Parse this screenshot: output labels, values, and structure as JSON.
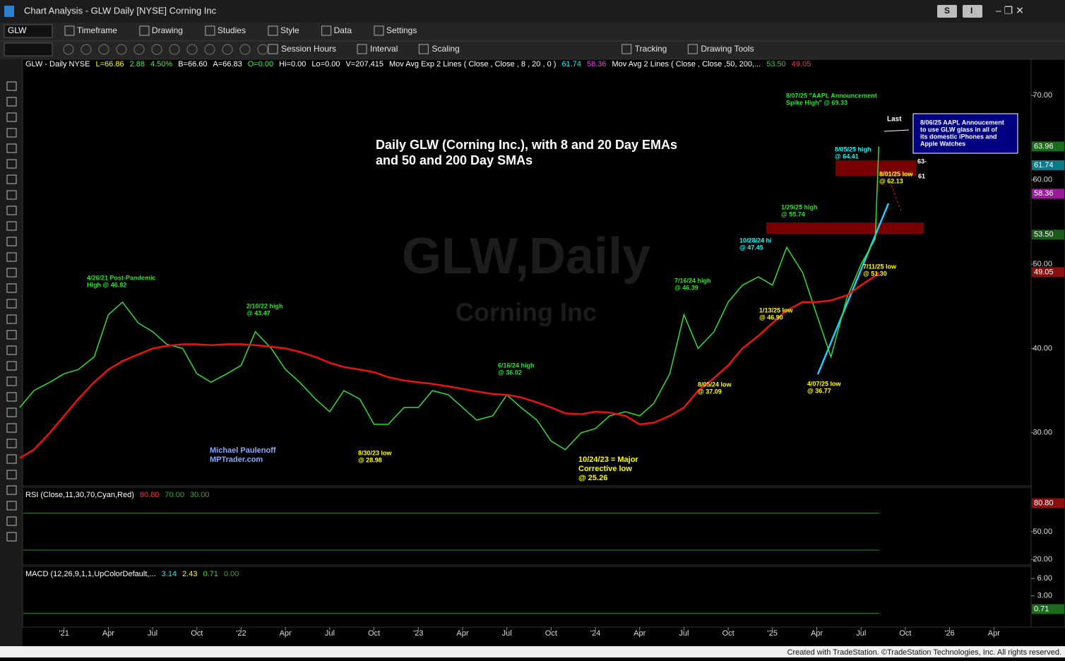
{
  "window": {
    "title": "Chart Analysis - GLW Daily [NYSE] Corning Inc",
    "buttons": [
      "S",
      "I"
    ]
  },
  "toolbar": {
    "symbol": "GLW",
    "row1": [
      "Timeframe",
      "Drawing",
      "Studies",
      "Style",
      "Data",
      "Settings"
    ],
    "row2": [
      "Session Hours",
      "Interval",
      "Scaling",
      "Tracking",
      "Drawing Tools"
    ]
  },
  "chart_data": {
    "type": "line",
    "header": [
      {
        "text": "GLW - Daily  NYSE",
        "color": "#ffffff"
      },
      {
        "text": "L=66.86",
        "color": "#ffff00"
      },
      {
        "text": "2.88",
        "color": "#33ff33"
      },
      {
        "text": "4.50%",
        "color": "#33ff33"
      },
      {
        "text": "B=66.60",
        "color": "#ffffff"
      },
      {
        "text": "A=66.83",
        "color": "#ffffff"
      },
      {
        "text": "O=0.00",
        "color": "#33ff33"
      },
      {
        "text": "Hi=0.00",
        "color": "#ffffff"
      },
      {
        "text": "Lo=0.00",
        "color": "#ffffff"
      },
      {
        "text": "V=207,415",
        "color": "#ffffff"
      },
      {
        "text": "Mov Avg Exp 2 Lines ( Close , Close , 8 , 20 , 0 )",
        "color": "#ffffff"
      },
      {
        "text": "61.74",
        "color": "#00ffff"
      },
      {
        "text": "58.36",
        "color": "#ff33ff"
      },
      {
        "text": "Mov Avg 2 Lines (     Close ,     Close ,50,  200,...",
        "color": "#ffffff"
      },
      {
        "text": "53.50",
        "color": "#33cc33"
      },
      {
        "text": "49.05",
        "color": "#ff3333"
      }
    ],
    "title": [
      "Daily GLW (Corning Inc.), with 8 and 20 Day EMAs",
      "and 50 and 200 Day SMAs"
    ],
    "watermark": [
      "GLW,Daily",
      "Corning Inc"
    ],
    "xlim": [
      2020.77,
      2026.46
    ],
    "xticks": [
      {
        "value": 2021,
        "label": "'21"
      },
      {
        "value": 2021.25,
        "label": "Apr"
      },
      {
        "value": 2021.5,
        "label": "Jul"
      },
      {
        "value": 2021.75,
        "label": "Oct"
      },
      {
        "value": 2022,
        "label": "'22"
      },
      {
        "value": 2022.25,
        "label": "Apr"
      },
      {
        "value": 2022.5,
        "label": "Jul"
      },
      {
        "value": 2022.75,
        "label": "Oct"
      },
      {
        "value": 2023,
        "label": "'23"
      },
      {
        "value": 2023.25,
        "label": "Apr"
      },
      {
        "value": 2023.5,
        "label": "Jul"
      },
      {
        "value": 2023.75,
        "label": "Oct"
      },
      {
        "value": 2024,
        "label": "'24"
      },
      {
        "value": 2024.25,
        "label": "Apr"
      },
      {
        "value": 2024.5,
        "label": "Jul"
      },
      {
        "value": 2024.75,
        "label": "Oct"
      },
      {
        "value": 2025,
        "label": "'25"
      },
      {
        "value": 2025.25,
        "label": "Apr"
      },
      {
        "value": 2025.5,
        "label": "Jul"
      },
      {
        "value": 2025.75,
        "label": "Oct"
      },
      {
        "value": 2026,
        "label": "'26"
      },
      {
        "value": 2026.25,
        "label": "Apr"
      }
    ],
    "ylim": [
      23.7,
      74.3
    ],
    "yticks": [
      {
        "value": 30,
        "label": "30.00"
      },
      {
        "value": 40,
        "label": "40.00"
      },
      {
        "value": 50,
        "label": "50.00"
      },
      {
        "value": 60,
        "label": "60.00"
      },
      {
        "value": 70,
        "label": "70.00"
      }
    ],
    "price_markers": [
      {
        "value": 63.96,
        "label": "63.96",
        "color": "#1a6b1a"
      },
      {
        "value": 61.74,
        "label": "61.74",
        "color": "#0a7a8a"
      },
      {
        "value": 58.36,
        "label": "58.36",
        "color": "#9a1a9a"
      },
      {
        "value": 53.5,
        "label": "53.50",
        "color": "#1a5a1a"
      },
      {
        "value": 49.05,
        "label": "49.05",
        "color": "#8a1010"
      }
    ],
    "x": [
      2020.75,
      2020.83,
      2020.92,
      2021.0,
      2021.08,
      2021.17,
      2021.25,
      2021.33,
      2021.42,
      2021.5,
      2021.58,
      2021.67,
      2021.75,
      2021.83,
      2021.92,
      2022.0,
      2022.08,
      2022.17,
      2022.25,
      2022.33,
      2022.42,
      2022.5,
      2022.58,
      2022.67,
      2022.75,
      2022.83,
      2022.92,
      2023.0,
      2023.08,
      2023.17,
      2023.25,
      2023.33,
      2023.42,
      2023.5,
      2023.58,
      2023.67,
      2023.75,
      2023.83,
      2023.92,
      2024.0,
      2024.08,
      2024.17,
      2024.25,
      2024.33,
      2024.42,
      2024.5,
      2024.58,
      2024.67,
      2024.75,
      2024.83,
      2024.92,
      2025.0,
      2025.08,
      2025.17,
      2025.25,
      2025.33,
      2025.42,
      2025.5,
      2025.58,
      2025.6
    ],
    "series": [
      {
        "name": "GLW",
        "color": "#33dd33",
        "values": [
          33,
          35,
          36,
          37,
          37.5,
          39,
          44,
          45.5,
          43,
          42,
          40.5,
          40,
          37,
          36,
          37,
          38,
          42,
          40,
          37.5,
          36,
          34,
          32.5,
          35,
          34,
          31,
          31,
          33,
          33,
          35,
          34.5,
          33,
          31.5,
          32,
          34.5,
          33,
          31.5,
          29,
          28,
          30,
          30.5,
          32,
          32.5,
          32,
          33.5,
          37,
          44,
          40,
          42,
          45.5,
          47.5,
          48.5,
          47.5,
          52,
          49,
          44,
          39,
          46,
          50,
          53,
          63.96
        ]
      },
      {
        "name": "200 Day SMA",
        "color": "#ee1111",
        "values": [
          27,
          28,
          30,
          32,
          34,
          36,
          37.5,
          38.5,
          39.3,
          40,
          40.3,
          40.5,
          40.5,
          40.4,
          40.5,
          40.5,
          40.4,
          40.2,
          40,
          39.6,
          39,
          38.3,
          37.8,
          37.5,
          37.2,
          36.6,
          36.2,
          36,
          35.8,
          35.5,
          35.2,
          34.9,
          34.6,
          34.5,
          34.2,
          33.6,
          33,
          32.3,
          32.2,
          32.5,
          32.4,
          32,
          31,
          31.2,
          32,
          33,
          35,
          36.5,
          38,
          40,
          41.5,
          43,
          44.5,
          45.5,
          45.5,
          45.7,
          46.3,
          47.5,
          48.6,
          49.05
        ]
      }
    ],
    "annotations": [
      {
        "lines": [
          "8/07/25 \"AAPL Announcement",
          "Spike High\" @ 69.33"
        ],
        "color": "#33dd33"
      },
      {
        "lines": [
          "Last"
        ],
        "color": "#ffffff"
      },
      {
        "lines": [
          "8/06/25 AAPL Annoucement",
          "to use GLW glass in all of",
          "its domestic iPhones and",
          "Apple Watches"
        ],
        "color": "#ffffff"
      },
      {
        "lines": [
          "8/05/25 high",
          "@ 64.41"
        ],
        "color": "#00ffff"
      },
      {
        "lines": [
          "8/01/25 low",
          "@ 62.13"
        ],
        "color": "#ffff00"
      },
      {
        "lines": [
          "1/29/25 high",
          "@ 55.74"
        ],
        "color": "#33dd33"
      },
      {
        "lines": [
          "10/28/24 hi",
          "@ 47.45"
        ],
        "color": "#00ffff"
      },
      {
        "lines": [
          "7/11/25 low",
          "@ 51.30"
        ],
        "color": "#ffff00"
      },
      {
        "lines": [
          "7/16/24 high",
          "@ 46.39"
        ],
        "color": "#33dd33"
      },
      {
        "lines": [
          "1/13/25 low",
          "@ 46.90"
        ],
        "color": "#ffff00"
      },
      {
        "lines": [
          "4/26/21 Post-Pandemic",
          "High @ 46.82"
        ],
        "color": "#33dd33"
      },
      {
        "lines": [
          "2/10/22 high",
          "@ 43.47"
        ],
        "color": "#33dd33"
      },
      {
        "lines": [
          "6/16/24 high",
          "@ 36.02"
        ],
        "color": "#33dd33"
      },
      {
        "lines": [
          "8/05/24 low",
          "@ 37.09"
        ],
        "color": "#ffff00"
      },
      {
        "lines": [
          "4/07/25 low",
          "@ 36.77"
        ],
        "color": "#ffff00"
      },
      {
        "lines": [
          "8/30/23 low",
          "@ 28.98"
        ],
        "color": "#ffff00"
      },
      {
        "lines": [
          "10/24/23 = Major",
          "Corrective low",
          "@ 25.26"
        ],
        "color": "#ffff00"
      },
      {
        "lines": [
          "Michael Paulenoff",
          "MPTrader.com"
        ],
        "color": "#88aaff"
      },
      {
        "lines": [
          "63-"
        ],
        "color": "#ffffff"
      },
      {
        "lines": [
          "61"
        ],
        "color": "#ffffff"
      }
    ],
    "rsi": {
      "header": [
        {
          "text": "RSI (Close,11,30,70,Cyan,Red)",
          "color": "#ffffff"
        },
        {
          "text": "80.80",
          "color": "#ff3333"
        },
        {
          "text": "70.00",
          "color": "#33aa33"
        },
        {
          "text": "30.00",
          "color": "#33aa33"
        }
      ],
      "ylim": [
        14,
        98
      ],
      "yticks": [
        {
          "value": 50,
          "label": "50.00"
        },
        {
          "value": 20,
          "label": "20.00"
        }
      ],
      "levels": [
        70,
        30
      ],
      "marker": {
        "value": 80.8,
        "label": "80.80",
        "color": "#8a1010"
      }
    },
    "macd": {
      "header": [
        {
          "text": "MACD (12,26,9,1,1,UpColorDefault,...",
          "color": "#ffffff"
        },
        {
          "text": "3.14",
          "color": "#00ffff"
        },
        {
          "text": "2.43",
          "color": "#ffff00"
        },
        {
          "text": "0.71",
          "color": "#33dd33"
        },
        {
          "text": "0.00",
          "color": "#33aa33"
        }
      ],
      "ylim": [
        -2.4,
        8.1
      ],
      "yticks": [
        {
          "value": 6,
          "label": "6.00"
        },
        {
          "value": 3,
          "label": "3.00"
        }
      ],
      "zero": 0,
      "marker": {
        "value": 0.71,
        "label": "0.71",
        "color": "#1a6b1a"
      }
    }
  },
  "footer": "Created with TradeStation. ©TradeStation Technologies, Inc. All rights reserved."
}
